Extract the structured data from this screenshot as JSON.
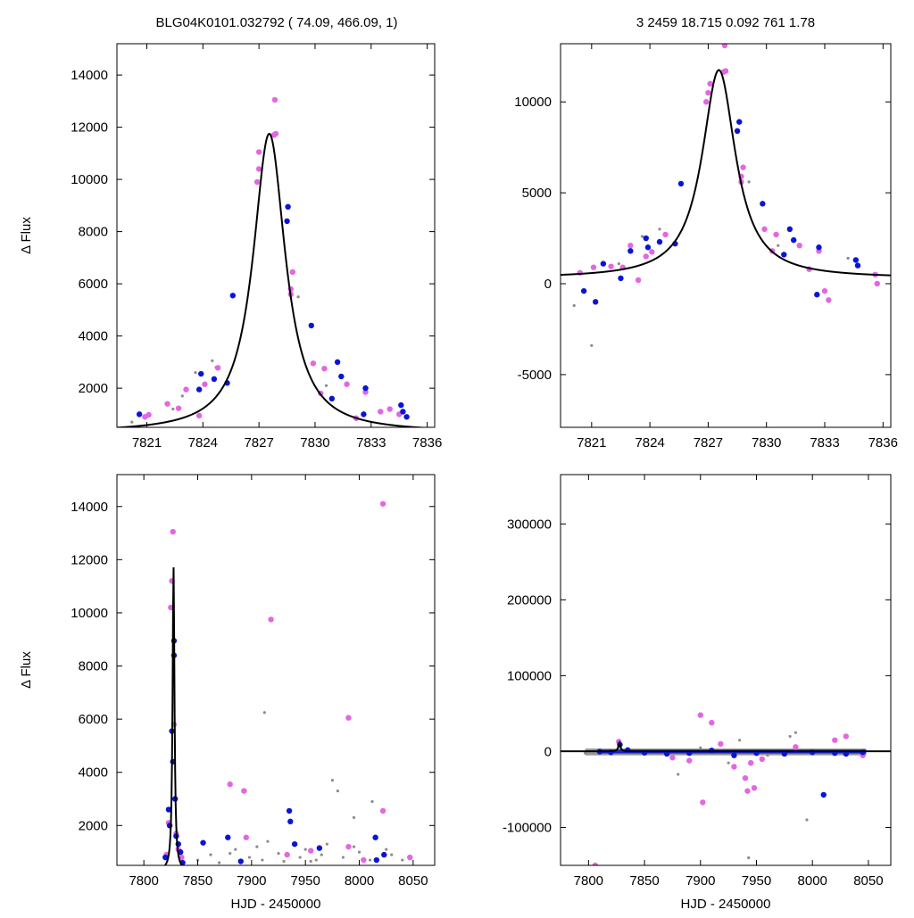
{
  "header": {
    "left": "BLG04K0101.032792 ( 74.09, 466.09,    1)",
    "right": "3   2459   18.715   0.092   761   1.78"
  },
  "colors": {
    "magenta": "#e466e0",
    "blue": "#0a14d8",
    "gray": "#8c8c8c",
    "model": "#000000"
  },
  "chart_data": [
    {
      "type": "scatter",
      "panel": "top-left",
      "xlabel": "",
      "ylabel": "Δ Flux",
      "xlim": [
        7819.4,
        7836.4
      ],
      "ylim": [
        500,
        15200
      ],
      "xticks": [
        7821,
        7824,
        7827,
        7830,
        7833,
        7836
      ],
      "yticks": [
        2000,
        4000,
        6000,
        8000,
        10000,
        12000,
        14000
      ],
      "model": {
        "t0": 7827.55,
        "fmax": 11750,
        "base": 300,
        "tau": 1.05
      },
      "series": [
        {
          "color": "magenta",
          "points": [
            [
              7820.9,
              900
            ],
            [
              7821.1,
              980
            ],
            [
              7822.1,
              1400
            ],
            [
              7822.7,
              1230
            ],
            [
              7823.1,
              1950
            ],
            [
              7823.8,
              950
            ],
            [
              7824.1,
              2150
            ],
            [
              7824.8,
              2780
            ],
            [
              7826.9,
              9900
            ],
            [
              7827.0,
              10400
            ],
            [
              7827.0,
              11050
            ],
            [
              7827.8,
              11700
            ],
            [
              7827.9,
              11750
            ],
            [
              7827.85,
              13050
            ],
            [
              7828.7,
              5800
            ],
            [
              7828.7,
              5600
            ],
            [
              7828.8,
              6450
            ],
            [
              7829.9,
              2950
            ],
            [
              7830.3,
              1800
            ],
            [
              7830.5,
              2750
            ],
            [
              7831.7,
              2150
            ],
            [
              7832.2,
              850
            ],
            [
              7832.7,
              1850
            ],
            [
              7833.5,
              1100
            ],
            [
              7834.0,
              1200
            ],
            [
              7834.5,
              1000
            ]
          ]
        },
        {
          "color": "blue",
          "points": [
            [
              7820.6,
              1000
            ],
            [
              7823.8,
              1950
            ],
            [
              7823.9,
              2550
            ],
            [
              7824.6,
              2350
            ],
            [
              7825.3,
              2200
            ],
            [
              7825.6,
              5550
            ],
            [
              7828.5,
              8400
            ],
            [
              7828.55,
              8950
            ],
            [
              7829.8,
              4400
            ],
            [
              7830.9,
              1600
            ],
            [
              7831.2,
              3000
            ],
            [
              7831.4,
              2450
            ],
            [
              7832.6,
              1000
            ],
            [
              7832.7,
              2000
            ],
            [
              7834.6,
              1350
            ],
            [
              7834.7,
              1100
            ],
            [
              7834.9,
              900
            ]
          ]
        },
        {
          "color": "gray",
          "points": [
            [
              7822.4,
              1200
            ],
            [
              7823.6,
              2600
            ],
            [
              7824.5,
              3050
            ],
            [
              7824.7,
              2800
            ],
            [
              7829.1,
              5500
            ],
            [
              7830.6,
              2100
            ],
            [
              7820.2,
              700
            ],
            [
              7822.9,
              1700
            ]
          ]
        }
      ]
    },
    {
      "type": "scatter",
      "panel": "top-right",
      "xlabel": "",
      "ylabel": "",
      "xlim": [
        7819.4,
        7836.4
      ],
      "ylim": [
        -7900,
        13200
      ],
      "xticks": [
        7821,
        7824,
        7827,
        7830,
        7833,
        7836
      ],
      "yticks": [
        -5000,
        0,
        5000,
        10000
      ],
      "model": {
        "t0": 7827.55,
        "fmax": 11750,
        "base": 300,
        "tau": 1.05
      },
      "series": [
        {
          "color": "magenta",
          "points": [
            [
              7820.4,
              600
            ],
            [
              7821.1,
              900
            ],
            [
              7822.0,
              950
            ],
            [
              7822.6,
              900
            ],
            [
              7823.0,
              2100
            ],
            [
              7823.4,
              200
            ],
            [
              7823.8,
              1500
            ],
            [
              7824.1,
              1750
            ],
            [
              7824.8,
              2700
            ],
            [
              7826.9,
              10000
            ],
            [
              7827.0,
              10500
            ],
            [
              7827.1,
              11000
            ],
            [
              7827.8,
              11650
            ],
            [
              7827.9,
              11700
            ],
            [
              7827.85,
              13100
            ],
            [
              7828.7,
              5900
            ],
            [
              7828.7,
              5600
            ],
            [
              7828.8,
              6400
            ],
            [
              7829.9,
              3000
            ],
            [
              7830.3,
              1800
            ],
            [
              7830.5,
              2700
            ],
            [
              7831.7,
              2100
            ],
            [
              7832.2,
              800
            ],
            [
              7832.7,
              1800
            ],
            [
              7833.0,
              -400
            ],
            [
              7833.2,
              -900
            ],
            [
              7835.6,
              500
            ],
            [
              7835.7,
              0
            ]
          ]
        },
        {
          "color": "blue",
          "points": [
            [
              7820.6,
              -400
            ],
            [
              7821.2,
              -1000
            ],
            [
              7821.6,
              1100
            ],
            [
              7822.5,
              300
            ],
            [
              7823.0,
              1800
            ],
            [
              7823.8,
              2500
            ],
            [
              7823.9,
              2000
            ],
            [
              7824.5,
              2300
            ],
            [
              7825.3,
              2200
            ],
            [
              7825.6,
              5500
            ],
            [
              7828.5,
              8400
            ],
            [
              7828.6,
              8900
            ],
            [
              7829.8,
              4400
            ],
            [
              7830.9,
              1600
            ],
            [
              7831.2,
              3000
            ],
            [
              7831.4,
              2400
            ],
            [
              7832.6,
              -600
            ],
            [
              7832.7,
              2000
            ],
            [
              7834.6,
              1300
            ],
            [
              7834.7,
              1000
            ]
          ]
        },
        {
          "color": "gray",
          "points": [
            [
              7820.1,
              -1200
            ],
            [
              7821.0,
              -3400
            ],
            [
              7822.4,
              1100
            ],
            [
              7823.6,
              2600
            ],
            [
              7824.5,
              3000
            ],
            [
              7829.1,
              5600
            ],
            [
              7830.6,
              2100
            ],
            [
              7834.2,
              1400
            ]
          ]
        }
      ]
    },
    {
      "type": "scatter",
      "panel": "bottom-left",
      "xlabel": "HJD - 2450000",
      "ylabel": "Δ Flux",
      "xlim": [
        7775,
        8070
      ],
      "ylim": [
        500,
        15200
      ],
      "xticks": [
        7800,
        7850,
        7900,
        7950,
        8000,
        8050
      ],
      "yticks": [
        2000,
        4000,
        6000,
        8000,
        10000,
        12000,
        14000
      ],
      "model": {
        "t0": 7827.55,
        "fmax": 11750,
        "base": 300,
        "tau": 1.05
      },
      "series": [
        {
          "color": "magenta",
          "points": [
            [
              7821,
              900
            ],
            [
              7823,
              2100
            ],
            [
              7825,
              10200
            ],
            [
              7826,
              11200
            ],
            [
              7827,
              13050
            ],
            [
              7828,
              5800
            ],
            [
              7829,
              3000
            ],
            [
              7830,
              1700
            ],
            [
              7832,
              1100
            ],
            [
              7835,
              800
            ],
            [
              7880,
              3550
            ],
            [
              7893,
              3300
            ],
            [
              7895,
              1550
            ],
            [
              7918,
              9750
            ],
            [
              7933,
              900
            ],
            [
              7955,
              1050
            ],
            [
              7990,
              6050
            ],
            [
              7990,
              1200
            ],
            [
              8004,
              700
            ],
            [
              8022,
              14100
            ],
            [
              8022,
              2550
            ],
            [
              8047,
              800
            ]
          ]
        },
        {
          "color": "blue",
          "points": [
            [
              7820,
              800
            ],
            [
              7823,
              2600
            ],
            [
              7824,
              2000
            ],
            [
              7826,
              5550
            ],
            [
              7827,
              4400
            ],
            [
              7828,
              8950
            ],
            [
              7828,
              8400
            ],
            [
              7829,
              3000
            ],
            [
              7830,
              1600
            ],
            [
              7832,
              1300
            ],
            [
              7834,
              1000
            ],
            [
              7836,
              600
            ],
            [
              7855,
              1350
            ],
            [
              7878,
              1550
            ],
            [
              7890,
              650
            ],
            [
              7935,
              2550
            ],
            [
              7936,
              2150
            ],
            [
              7940,
              1300
            ],
            [
              7963,
              1150
            ],
            [
              8015,
              1550
            ],
            [
              8016,
              700
            ],
            [
              8023,
              900
            ]
          ]
        },
        {
          "color": "gray",
          "points": [
            [
              7912,
              6250
            ],
            [
              7975,
              3700
            ],
            [
              7980,
              3300
            ],
            [
              7995,
              2300
            ],
            [
              8012,
              2900
            ],
            [
              7850,
              700
            ],
            [
              7862,
              900
            ],
            [
              7870,
              600
            ],
            [
              7885,
              1100
            ],
            [
              7898,
              800
            ],
            [
              7905,
              1200
            ],
            [
              7910,
              700
            ],
            [
              7925,
              950
            ],
            [
              7930,
              650
            ],
            [
              7945,
              800
            ],
            [
              7950,
              1100
            ],
            [
              7960,
              700
            ],
            [
              7970,
              1300
            ],
            [
              7985,
              800
            ],
            [
              8000,
              1000
            ],
            [
              8010,
              700
            ],
            [
              8030,
              900
            ],
            [
              8040,
              700
            ],
            [
              7880,
              950
            ],
            [
              7915,
              1400
            ],
            [
              7955,
              650
            ],
            [
              7965,
              900
            ],
            [
              7995,
              1200
            ],
            [
              8025,
              1100
            ]
          ]
        }
      ]
    },
    {
      "type": "scatter",
      "panel": "bottom-right",
      "xlabel": "HJD - 2450000",
      "ylabel": "",
      "xlim": [
        7775,
        8070
      ],
      "ylim": [
        -150000,
        365000
      ],
      "xticks": [
        7800,
        7850,
        7900,
        7950,
        8000,
        8050
      ],
      "yticks": [
        -100000,
        0,
        100000,
        200000,
        300000
      ],
      "model": {
        "t0": 7827.55,
        "fmax": 11750,
        "base": 300,
        "tau": 1.05
      },
      "series": [
        {
          "color": "magenta",
          "points": [
            [
              7806,
              -150000
            ],
            [
              7827,
              13000
            ],
            [
              7875,
              -8000
            ],
            [
              7890,
              -12000
            ],
            [
              7900,
              48000
            ],
            [
              7902,
              -67000
            ],
            [
              7910,
              38000
            ],
            [
              7918,
              10000
            ],
            [
              7930,
              -20000
            ],
            [
              7940,
              -35000
            ],
            [
              7942,
              -52000
            ],
            [
              7945,
              -15000
            ],
            [
              7948,
              -48000
            ],
            [
              7955,
              -10000
            ],
            [
              7985,
              6000
            ],
            [
              8020,
              15000
            ],
            [
              8030,
              20000
            ],
            [
              8045,
              -5000
            ]
          ]
        },
        {
          "color": "blue",
          "points": [
            [
              7810,
              0
            ],
            [
              7820,
              -1000
            ],
            [
              7828,
              9000
            ],
            [
              7835,
              2000
            ],
            [
              7850,
              -1500
            ],
            [
              7870,
              -3000
            ],
            [
              7890,
              -2000
            ],
            [
              7910,
              1500
            ],
            [
              7930,
              -5000
            ],
            [
              7950,
              -2000
            ],
            [
              7975,
              -3000
            ],
            [
              8000,
              -1000
            ],
            [
              8010,
              -57000
            ],
            [
              8020,
              -2000
            ],
            [
              8030,
              -3000
            ],
            [
              8045,
              -1000
            ]
          ]
        },
        {
          "color": "gray",
          "points": [
            [
              7797,
              -2000
            ],
            [
              7880,
              -30000
            ],
            [
              7925,
              -15000
            ],
            [
              7935,
              15000
            ],
            [
              7943,
              -140000
            ],
            [
              7980,
              20000
            ],
            [
              7985,
              25000
            ],
            [
              7995,
              -90000
            ],
            [
              7900,
              5000
            ],
            [
              7960,
              -5000
            ]
          ]
        }
      ],
      "bands": [
        {
          "color": "gray",
          "x0": 7797,
          "x1": 8048,
          "y0": -5000,
          "y1": 4000
        },
        {
          "color": "blue",
          "x0": 7808,
          "x1": 8048,
          "y0": -2500,
          "y1": 2500
        }
      ]
    }
  ]
}
